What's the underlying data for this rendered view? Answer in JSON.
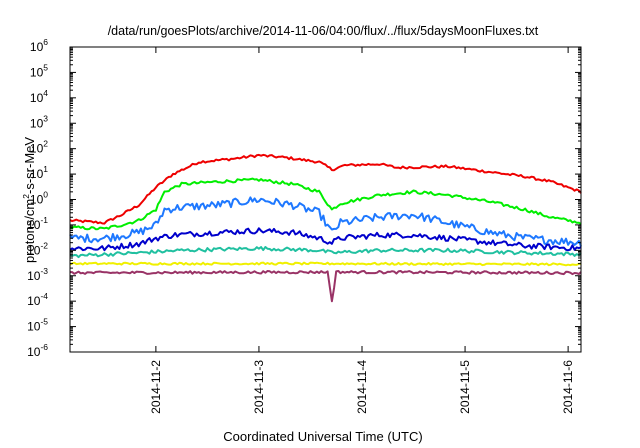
{
  "chart_data": {
    "type": "line",
    "title": "/data/run/goesPlots/archive/2014-11-06/04:00/flux/../flux/5daysMoonFluxes.txt",
    "xlabel": "Coordinated Universal Time (UTC)",
    "ylabel": {
      "prefix": "protons/cm",
      "sup": "2",
      "suffix": "-s-sr-MeV"
    },
    "yscale": "log",
    "ylim": [
      1e-06,
      1000000.0
    ],
    "ytick_labels": [
      {
        "exp": "-6"
      },
      {
        "exp": "-5"
      },
      {
        "exp": "-4"
      },
      {
        "exp": "-3"
      },
      {
        "exp": "-2"
      },
      {
        "exp": "-1"
      },
      {
        "exp": "0"
      },
      {
        "exp": "1"
      },
      {
        "exp": "2"
      },
      {
        "exp": "3"
      },
      {
        "exp": "4"
      },
      {
        "exp": "5"
      },
      {
        "exp": "6"
      }
    ],
    "ytick_base": "10",
    "xlim": [
      "2014-11-01T04:00",
      "2014-11-06T03:00"
    ],
    "xtick_labels": [
      "2014-11-2",
      "2014-11-3",
      "2014-11-4",
      "2014-11-5",
      "2014-11-6"
    ],
    "xtick_dates": [
      "2014-11-02",
      "2014-11-03",
      "2014-11-04",
      "2014-11-05",
      "2014-11-06"
    ],
    "grid": false,
    "series": [
      {
        "color": "#ee0000",
        "noise": 0.05,
        "points": [
          [
            "2014-11-01T04:00",
            0.15
          ],
          [
            "2014-11-01T12:00",
            0.12
          ],
          [
            "2014-11-01T16:00",
            0.25
          ],
          [
            "2014-11-01T20:00",
            0.6
          ],
          [
            "2014-11-02T00:00",
            3
          ],
          [
            "2014-11-02T04:00",
            10
          ],
          [
            "2014-11-02T10:00",
            30
          ],
          [
            "2014-11-02T18:00",
            40
          ],
          [
            "2014-11-03T00:00",
            55
          ],
          [
            "2014-11-03T06:00",
            45
          ],
          [
            "2014-11-03T14:00",
            30
          ],
          [
            "2014-11-03T17:00",
            15
          ],
          [
            "2014-11-03T20:00",
            22
          ],
          [
            "2014-11-04T04:00",
            25
          ],
          [
            "2014-11-04T08:00",
            18
          ],
          [
            "2014-11-04T20:00",
            20
          ],
          [
            "2014-11-05T06:00",
            12
          ],
          [
            "2014-11-05T14:00",
            8
          ],
          [
            "2014-11-05T20:00",
            5
          ],
          [
            "2014-11-06T03:00",
            2
          ]
        ]
      },
      {
        "color": "#00ee00",
        "noise": 0.06,
        "points": [
          [
            "2014-11-01T04:00",
            0.08
          ],
          [
            "2014-11-01T12:00",
            0.07
          ],
          [
            "2014-11-01T16:00",
            0.1
          ],
          [
            "2014-11-01T20:00",
            0.15
          ],
          [
            "2014-11-02T00:00",
            0.4
          ],
          [
            "2014-11-02T02:00",
            2
          ],
          [
            "2014-11-02T06:00",
            4
          ],
          [
            "2014-11-02T14:00",
            5
          ],
          [
            "2014-11-03T00:00",
            6
          ],
          [
            "2014-11-03T08:00",
            4
          ],
          [
            "2014-11-03T14:00",
            2
          ],
          [
            "2014-11-03T17:00",
            0.4
          ],
          [
            "2014-11-03T19:00",
            0.7
          ],
          [
            "2014-11-04T04:00",
            1.5
          ],
          [
            "2014-11-04T12:00",
            2
          ],
          [
            "2014-11-04T20:00",
            1.5
          ],
          [
            "2014-11-05T06:00",
            0.8
          ],
          [
            "2014-11-05T14:00",
            0.4
          ],
          [
            "2014-11-05T20:00",
            0.2
          ],
          [
            "2014-11-06T03:00",
            0.12
          ]
        ]
      },
      {
        "color": "#1e78ff",
        "noise": 0.16,
        "points": [
          [
            "2014-11-01T04:00",
            0.03
          ],
          [
            "2014-11-01T12:00",
            0.03
          ],
          [
            "2014-11-01T20:00",
            0.05
          ],
          [
            "2014-11-02T00:00",
            0.1
          ],
          [
            "2014-11-02T02:00",
            0.4
          ],
          [
            "2014-11-02T06:00",
            0.5
          ],
          [
            "2014-11-02T14:00",
            0.6
          ],
          [
            "2014-11-03T00:00",
            1
          ],
          [
            "2014-11-03T08:00",
            0.6
          ],
          [
            "2014-11-03T14:00",
            0.3
          ],
          [
            "2014-11-03T17:00",
            0.05
          ],
          [
            "2014-11-03T19:00",
            0.12
          ],
          [
            "2014-11-04T04:00",
            0.2
          ],
          [
            "2014-11-04T12:00",
            0.25
          ],
          [
            "2014-11-04T20:00",
            0.12
          ],
          [
            "2014-11-05T06:00",
            0.05
          ],
          [
            "2014-11-05T14:00",
            0.03
          ],
          [
            "2014-11-06T03:00",
            0.02
          ]
        ]
      },
      {
        "color": "#0000cc",
        "noise": 0.11,
        "points": [
          [
            "2014-11-01T04:00",
            0.012
          ],
          [
            "2014-11-01T12:00",
            0.012
          ],
          [
            "2014-11-01T20:00",
            0.018
          ],
          [
            "2014-11-02T00:00",
            0.03
          ],
          [
            "2014-11-02T04:00",
            0.04
          ],
          [
            "2014-11-02T14:00",
            0.05
          ],
          [
            "2014-11-03T00:00",
            0.06
          ],
          [
            "2014-11-03T08:00",
            0.05
          ],
          [
            "2014-11-03T14:00",
            0.03
          ],
          [
            "2014-11-03T17:00",
            0.02
          ],
          [
            "2014-11-03T19:00",
            0.03
          ],
          [
            "2014-11-04T04:00",
            0.04
          ],
          [
            "2014-11-04T12:00",
            0.04
          ],
          [
            "2014-11-04T20:00",
            0.03
          ],
          [
            "2014-11-05T06:00",
            0.02
          ],
          [
            "2014-11-05T14:00",
            0.015
          ],
          [
            "2014-11-06T03:00",
            0.012
          ]
        ]
      },
      {
        "color": "#20c0a0",
        "noise": 0.07,
        "points": [
          [
            "2014-11-01T04:00",
            0.006
          ],
          [
            "2014-11-01T20:00",
            0.008
          ],
          [
            "2014-11-02T06:00",
            0.01
          ],
          [
            "2014-11-03T00:00",
            0.012
          ],
          [
            "2014-11-03T14:00",
            0.01
          ],
          [
            "2014-11-03T17:00",
            0.008
          ],
          [
            "2014-11-04T04:00",
            0.01
          ],
          [
            "2014-11-04T20:00",
            0.01
          ],
          [
            "2014-11-05T14:00",
            0.008
          ],
          [
            "2014-11-06T03:00",
            0.007
          ]
        ]
      },
      {
        "color": "#f0f000",
        "noise": 0.04,
        "points": [
          [
            "2014-11-01T04:00",
            0.003
          ],
          [
            "2014-11-03T17:00",
            0.003
          ],
          [
            "2014-11-06T03:00",
            0.0028
          ]
        ]
      },
      {
        "color": "#993366",
        "noise": 0.05,
        "points": [
          [
            "2014-11-01T04:00",
            0.0013
          ],
          [
            "2014-11-03T16:00",
            0.0014
          ],
          [
            "2014-11-03T17:00",
            0.0001
          ],
          [
            "2014-11-03T18:00",
            0.0014
          ],
          [
            "2014-11-06T03:00",
            0.0013
          ]
        ]
      }
    ]
  }
}
